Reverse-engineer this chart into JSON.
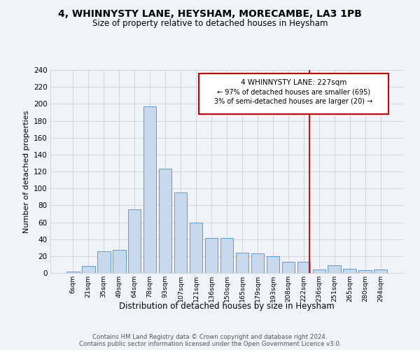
{
  "title": "4, WHINNYSTY LANE, HEYSHAM, MORECAMBE, LA3 1PB",
  "subtitle": "Size of property relative to detached houses in Heysham",
  "xlabel": "Distribution of detached houses by size in Heysham",
  "ylabel": "Number of detached properties",
  "bar_color": "#c8d9ed",
  "bar_edge_color": "#5b9bd5",
  "categories": [
    "6sqm",
    "21sqm",
    "35sqm",
    "49sqm",
    "64sqm",
    "78sqm",
    "93sqm",
    "107sqm",
    "121sqm",
    "136sqm",
    "150sqm",
    "165sqm",
    "179sqm",
    "193sqm",
    "208sqm",
    "222sqm",
    "236sqm",
    "251sqm",
    "265sqm",
    "280sqm",
    "294sqm"
  ],
  "bar_heights": [
    2,
    8,
    26,
    27,
    75,
    197,
    123,
    95,
    60,
    41,
    41,
    24,
    23,
    20,
    13,
    13,
    4,
    9,
    5,
    3,
    4
  ],
  "ylim": [
    0,
    240
  ],
  "yticks": [
    0,
    20,
    40,
    60,
    80,
    100,
    120,
    140,
    160,
    180,
    200,
    220,
    240
  ],
  "annotation_line1": "4 WHINNYSTY LANE: 227sqm",
  "annotation_line2": "← 97% of detached houses are smaller (695)",
  "annotation_line3": "3% of semi-detached houses are larger (20) →",
  "marker_color": "#cc0000",
  "footer_line1": "Contains HM Land Registry data © Crown copyright and database right 2024.",
  "footer_line2": "Contains public sector information licensed under the Open Government Licence v3.0.",
  "grid_color": "#d0d0d0",
  "background_color": "#f0f4fa"
}
